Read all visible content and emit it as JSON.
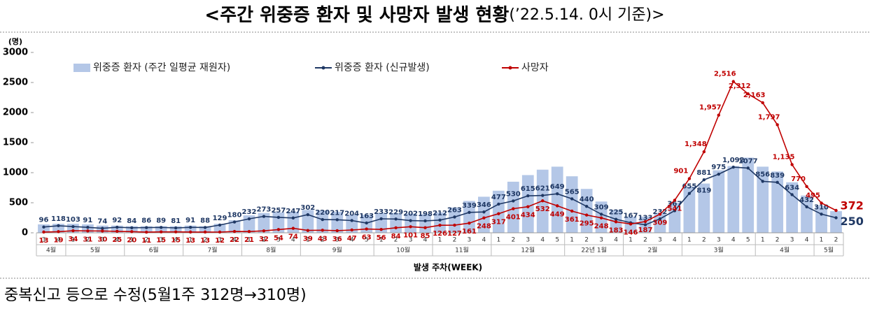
{
  "chart_data": {
    "type": "bar",
    "title": "<주간 위중증 환자 및 사망자 발생 현황",
    "subtitle": "(’22.5.14. 0시 기준)>",
    "y_unit": "(명)",
    "xlabel": "발생 주차(WEEK)",
    "note": "중복신고 등으로 수정(5월1주 312명→310명)",
    "ylim": [
      0,
      3000
    ],
    "yticks": [
      0,
      500,
      1000,
      1500,
      2000,
      2500,
      3000
    ],
    "grid": false,
    "legend": "top",
    "categories": [
      "3",
      "4",
      "1",
      "2",
      "3",
      "4",
      "1",
      "2",
      "3",
      "4",
      "1",
      "2",
      "3",
      "4",
      "1",
      "2",
      "3",
      "4",
      "1",
      "2",
      "3",
      "4",
      "5",
      "1",
      "2",
      "3",
      "4",
      "1",
      "2",
      "3",
      "4",
      "1",
      "2",
      "3",
      "4",
      "5",
      "1",
      "2",
      "3",
      "4",
      "1",
      "2",
      "3",
      "4",
      "1",
      "2",
      "3",
      "4",
      "5",
      "1",
      "2",
      "3",
      "4",
      "1",
      "2"
    ],
    "months": [
      {
        "label": "4월",
        "span": 2
      },
      {
        "label": "5월",
        "span": 4
      },
      {
        "label": "6월",
        "span": 4
      },
      {
        "label": "7월",
        "span": 4
      },
      {
        "label": "8월",
        "span": 4
      },
      {
        "label": "9월",
        "span": 5
      },
      {
        "label": "10월",
        "span": 4
      },
      {
        "label": "11월",
        "span": 4
      },
      {
        "label": "12월",
        "span": 5
      },
      {
        "label": "22년 1월",
        "span": 4
      },
      {
        "label": "2월",
        "span": 4
      },
      {
        "label": "3월",
        "span": 5
      },
      {
        "label": "4월",
        "span": 4
      },
      {
        "label": "5월",
        "span": 2
      }
    ],
    "series": [
      {
        "name": "위중증 환자 (주간 일평균 재원자)",
        "type": "bar",
        "color": "#b4c7e7",
        "values": [
          140,
          150,
          150,
          140,
          120,
          120,
          110,
          110,
          110,
          110,
          120,
          110,
          150,
          210,
          290,
          330,
          340,
          350,
          380,
          370,
          350,
          300,
          300,
          330,
          330,
          320,
          310,
          340,
          420,
          530,
          600,
          700,
          850,
          960,
          1050,
          1100,
          940,
          730,
          520,
          380,
          270,
          270,
          330,
          500,
          770,
          819,
          1040,
          1110,
          1250,
          1100,
          1020,
          840,
          620,
          450,
          360
        ],
        "value_labels": [
          null,
          null,
          null,
          null,
          null,
          null,
          null,
          null,
          null,
          null,
          null,
          null,
          null,
          null,
          null,
          null,
          null,
          null,
          null,
          null,
          null,
          null,
          null,
          null,
          null,
          null,
          null,
          null,
          null,
          null,
          null,
          null,
          null,
          null,
          null,
          null,
          null,
          null,
          null,
          null,
          null,
          null,
          null,
          null,
          null,
          "819",
          null,
          null,
          null,
          null,
          null,
          null,
          null,
          null,
          null
        ]
      },
      {
        "name": "위중증 환자 (신규발생)",
        "type": "line",
        "color": "#1f3864",
        "values": [
          96,
          118,
          103,
          91,
          74,
          92,
          84,
          86,
          89,
          81,
          91,
          88,
          129,
          180,
          232,
          273,
          257,
          247,
          302,
          220,
          217,
          204,
          163,
          233,
          229,
          202,
          198,
          212,
          263,
          339,
          346,
          477,
          530,
          615,
          621,
          649,
          565,
          440,
          309,
          225,
          167,
          133,
          232,
          367,
          655,
          881,
          975,
          1092,
          1077,
          856,
          839,
          634,
          432,
          310,
          250
        ],
        "value_labels": [
          "96",
          "118",
          "103",
          "91",
          "74",
          "92",
          "84",
          "86",
          "89",
          "81",
          "91",
          "88",
          "129",
          "180",
          "232",
          "273",
          "257",
          "247",
          "302",
          "220",
          "217",
          "204",
          "163",
          "233",
          "229",
          "202",
          "198",
          "212",
          "263",
          "339",
          "346",
          "477",
          "530",
          "615",
          "621",
          "649",
          "565",
          "440",
          "309",
          "225",
          "167",
          "133",
          "232",
          "367",
          "655",
          "881",
          "975",
          "1,092",
          "1077",
          "856",
          "839",
          "634",
          "432",
          "310",
          "250"
        ]
      },
      {
        "name": "사망자",
        "type": "line",
        "color": "#c00000",
        "values": [
          13,
          19,
          34,
          31,
          30,
          25,
          20,
          11,
          15,
          15,
          13,
          13,
          12,
          22,
          21,
          32,
          54,
          74,
          39,
          43,
          36,
          47,
          63,
          56,
          84,
          101,
          85,
          126,
          127,
          161,
          248,
          317,
          401,
          434,
          532,
          449,
          361,
          295,
          248,
          183,
          146,
          187,
          309,
          541,
          901,
          1348,
          1957,
          2516,
          2312,
          2163,
          1797,
          1135,
          770,
          495,
          372
        ],
        "value_labels": [
          "13",
          "19",
          "34",
          "31",
          "30",
          "25",
          "20",
          "11",
          "15",
          "15",
          "13",
          "13",
          "12",
          "22",
          "21",
          "32",
          "54",
          "74",
          "39",
          "43",
          "36",
          "47",
          "63",
          "56",
          "84",
          "101",
          "85",
          "126",
          "127",
          "161",
          "248",
          "317",
          "401",
          "434",
          "532",
          "449",
          "361",
          "295",
          "248",
          "183",
          "146",
          "187",
          "309",
          "541",
          "901",
          "1,348",
          "1,957",
          "2,516",
          "2,312",
          "2,163",
          "1,797",
          "1,135",
          "770",
          "495",
          "372"
        ]
      }
    ]
  }
}
